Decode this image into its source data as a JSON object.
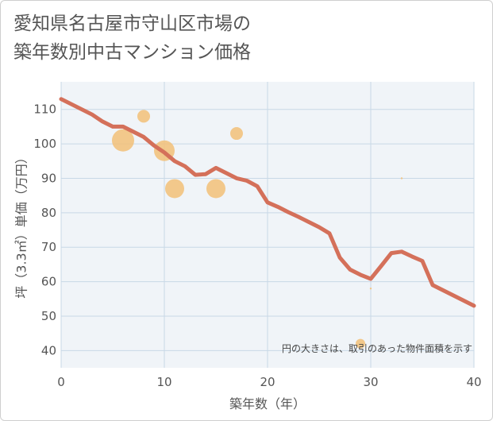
{
  "chart_data": {
    "type": "scatter",
    "title_lines": [
      "愛知県名古屋市守山区市場の",
      "築年数別中古マンション価格"
    ],
    "xlabel": "築年数（年）",
    "ylabel": "坪（3.3㎡）単価（万円）",
    "xlim": [
      0,
      40
    ],
    "ylim": [
      35,
      118
    ],
    "xticks": [
      0,
      10,
      20,
      30,
      40
    ],
    "yticks": [
      40,
      50,
      60,
      70,
      80,
      90,
      100,
      110
    ],
    "grid": true,
    "note": "円の大きさは、取引のあった物件面積を示す",
    "colors": {
      "line": "#d4705a",
      "bubble": "#f2c078",
      "grid": "#c8d8e6",
      "plot_bg": "#f0f4f8"
    },
    "trend_line": {
      "x": [
        0,
        1,
        2,
        3,
        4,
        5,
        6,
        7,
        8,
        9,
        10,
        11,
        12,
        13,
        14,
        15,
        16,
        17,
        18,
        19,
        20,
        21,
        22,
        23,
        24,
        25,
        26,
        27,
        28,
        29,
        30,
        31,
        32,
        33,
        34,
        35,
        36,
        37,
        38,
        39,
        40
      ],
      "y": [
        113,
        111.5,
        110,
        108.5,
        106.5,
        105,
        105,
        103.5,
        102,
        99.5,
        97.5,
        95,
        93.5,
        91,
        91.2,
        93,
        91.5,
        90,
        89.3,
        87.7,
        83,
        81.7,
        80.2,
        78.8,
        77.3,
        75.8,
        74,
        67,
        63.5,
        62,
        60.8,
        64.5,
        68.3,
        68.7,
        67.3,
        66,
        59,
        57.5,
        56,
        54.5,
        53
      ]
    },
    "bubbles": [
      {
        "x": 6,
        "y": 101,
        "size": 14
      },
      {
        "x": 8,
        "y": 108,
        "size": 8
      },
      {
        "x": 10,
        "y": 98,
        "size": 13
      },
      {
        "x": 11,
        "y": 87,
        "size": 12
      },
      {
        "x": 15,
        "y": 87,
        "size": 12
      },
      {
        "x": 17,
        "y": 103,
        "size": 8
      },
      {
        "x": 29,
        "y": 42,
        "size": 6
      },
      {
        "x": 30,
        "y": 58,
        "size": 1.2
      },
      {
        "x": 33,
        "y": 90,
        "size": 1.2
      }
    ]
  }
}
